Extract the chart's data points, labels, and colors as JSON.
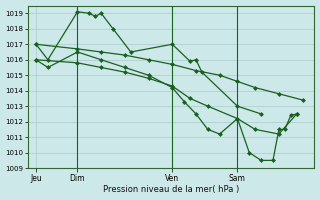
{
  "bg_color": "#cce8e8",
  "grid_color": "#aacccc",
  "line_color": "#1a6020",
  "title": "Pression niveau de la mer( hPa )",
  "ylim": [
    1009,
    1019.5
  ],
  "yticks": [
    1009,
    1010,
    1011,
    1012,
    1013,
    1014,
    1015,
    1016,
    1017,
    1018,
    1019
  ],
  "xtick_labels": [
    "Jeu",
    "Dim",
    "Ven",
    "Sam"
  ],
  "xtick_positions": [
    0.5,
    4.0,
    12.0,
    17.5
  ],
  "xvlines": [
    4.0,
    12.0,
    17.5
  ],
  "xlim": [
    -0.2,
    24.0
  ],
  "line1_x": [
    0.5,
    1.5,
    4.0,
    5.0,
    5.5,
    6.0,
    7.0,
    8.5,
    12.0,
    13.5,
    14.0,
    14.5,
    17.5,
    19.5
  ],
  "line1_y": [
    1017.0,
    1016.0,
    1019.1,
    1019.0,
    1018.8,
    1019.0,
    1018.0,
    1016.5,
    1017.0,
    1015.9,
    1016.0,
    1015.2,
    1013.0,
    1012.5
  ],
  "line2_x": [
    0.5,
    4.0,
    6.0,
    8.0,
    10.0,
    12.0,
    14.0,
    16.0,
    17.5,
    19.0,
    21.0,
    23.0
  ],
  "line2_y": [
    1017.0,
    1016.7,
    1016.5,
    1016.3,
    1016.0,
    1015.7,
    1015.3,
    1015.0,
    1014.6,
    1014.2,
    1013.8,
    1013.4
  ],
  "line3_x": [
    0.5,
    4.0,
    6.0,
    8.0,
    10.0,
    12.0,
    13.5,
    15.0,
    17.5,
    19.0,
    21.0,
    22.5
  ],
  "line3_y": [
    1016.0,
    1015.8,
    1015.5,
    1015.2,
    1014.8,
    1014.3,
    1013.5,
    1013.0,
    1012.2,
    1011.5,
    1011.2,
    1012.5
  ],
  "line4_x": [
    0.5,
    1.5,
    4.0,
    6.0,
    8.0,
    10.0,
    12.0,
    13.0,
    14.0,
    15.0,
    16.0,
    17.5,
    18.5,
    19.5,
    20.5,
    21.0,
    21.5,
    22.0,
    22.5
  ],
  "line4_y": [
    1016.0,
    1015.5,
    1016.5,
    1016.0,
    1015.5,
    1015.0,
    1014.2,
    1013.3,
    1012.5,
    1011.5,
    1011.2,
    1012.2,
    1010.0,
    1009.5,
    1009.5,
    1011.5,
    1011.5,
    1012.4,
    1012.5
  ]
}
